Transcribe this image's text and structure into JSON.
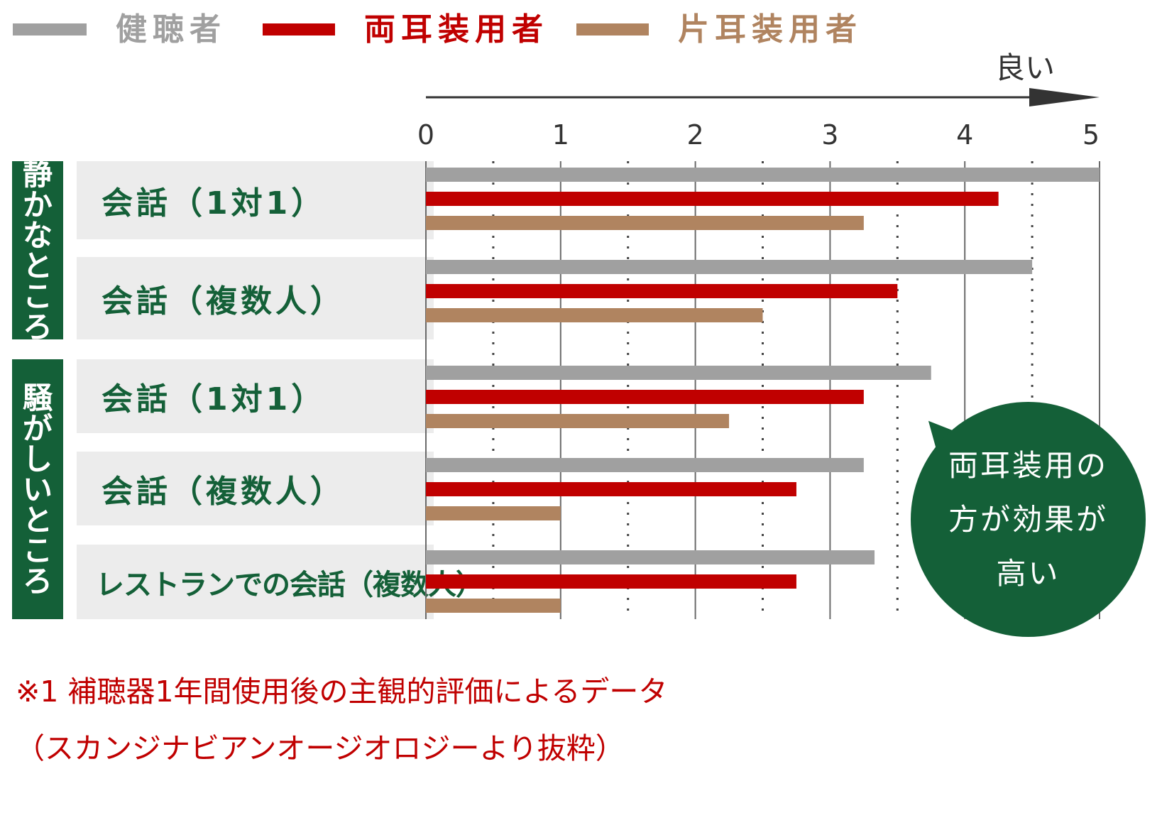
{
  "legend": [
    {
      "label": "健聴者",
      "color": "#a0a0a0"
    },
    {
      "label": "両耳装用者",
      "color": "#c00000"
    },
    {
      "label": "片耳装用者",
      "color": "#b08460"
    }
  ],
  "direction_label": "良い",
  "groups": [
    {
      "label": "静かなところ",
      "chars": [
        "静",
        "か",
        "な",
        "と",
        "こ",
        "ろ"
      ]
    },
    {
      "label": "騒がしいところ",
      "chars": [
        "騒",
        "が",
        "し",
        "い",
        "と",
        "こ",
        "ろ"
      ]
    }
  ],
  "categories": [
    "会話（1対1）",
    "会話（複数人）",
    "会話（1対1）",
    "会話（複数人）",
    "レストランでの会話（複数人）"
  ],
  "bubble": {
    "lines": [
      "両耳装用の",
      "方が効果が",
      "高い"
    ]
  },
  "notes": [
    "※1 補聴器1年間使用後の主観的評価によるデータ",
    "（スカンジナビアンオージオロジーより抜粋）"
  ],
  "chart_data": {
    "type": "bar",
    "orientation": "horizontal",
    "categories": [
      "静かなところ 会話（1対1）",
      "静かなところ 会話（複数人）",
      "騒がしいところ 会話（1対1）",
      "騒がしいところ 会話（複数人）",
      "騒がしいところ レストランでの会話（複数人）"
    ],
    "series": [
      {
        "name": "健聴者",
        "color": "#a0a0a0",
        "values": [
          5.0,
          4.5,
          3.75,
          3.25,
          3.33
        ]
      },
      {
        "name": "両耳装用者",
        "color": "#c00000",
        "values": [
          4.25,
          3.5,
          3.25,
          2.75,
          2.75
        ]
      },
      {
        "name": "片耳装用者",
        "color": "#b08460",
        "values": [
          3.25,
          2.5,
          2.25,
          1.0,
          1.0
        ]
      }
    ],
    "xlim": [
      0,
      5
    ],
    "xticks": [
      "0",
      "1",
      "2",
      "3",
      "4",
      "5"
    ],
    "grid": "solid at integers, dotted at halves"
  }
}
